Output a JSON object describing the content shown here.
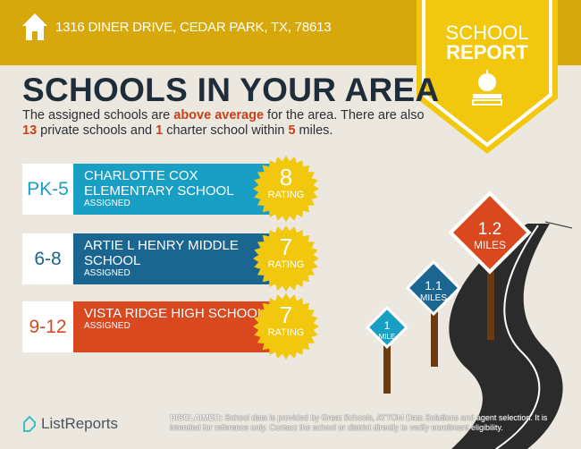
{
  "header": {
    "address": "1316 DINER DRIVE, CEDAR PARK, TX, 78613",
    "icon": "home-icon"
  },
  "badge": {
    "line1": "SCHOOL",
    "line2": "REPORT",
    "icon": "apple-books-icon"
  },
  "title": "SCHOOLS IN YOUR AREA",
  "intro": {
    "p1": "The assigned schools are ",
    "highlight": "above average",
    "p2": " for the area. There are also ",
    "private_count": "13",
    "p3": " private schools and ",
    "charter_count": "1",
    "p4": " charter school within ",
    "miles": "5",
    "p5": " miles."
  },
  "schools": [
    {
      "grade": "PK-5",
      "name": "CHARLOTTE COX ELEMENTARY SCHOOL",
      "status": "ASSIGNED",
      "rating": "8",
      "rating_label": "RATING",
      "color": "#1a9fc4"
    },
    {
      "grade": "6-8",
      "name": "ARTIE L HENRY MIDDLE SCHOOL",
      "status": "ASSIGNED",
      "rating": "7",
      "rating_label": "RATING",
      "color": "#1a6690"
    },
    {
      "grade": "9-12",
      "name": "VISTA RIDGE HIGH SCHOOL",
      "status": "ASSIGNED",
      "rating": "7",
      "rating_label": "RATING",
      "color": "#d9481f"
    }
  ],
  "signs": [
    {
      "value": "1",
      "unit": "MILE"
    },
    {
      "value": "1.1",
      "unit": "MILES"
    },
    {
      "value": "1.2",
      "unit": "MILES"
    }
  ],
  "footer": {
    "brand": "ListReports",
    "disclaimer_label": "DISCLAIMER:",
    "disclaimer": " School data is provided by Great Schools, ATTOM Data Solutions and agent selection. It is intended for reference only. Contact the school or district directly to verify enrollment eligibility."
  },
  "colors": {
    "header": "#d6a80c",
    "badge": "#f2c80f",
    "title": "#1f2d3a",
    "highlight": "#c9401b"
  }
}
